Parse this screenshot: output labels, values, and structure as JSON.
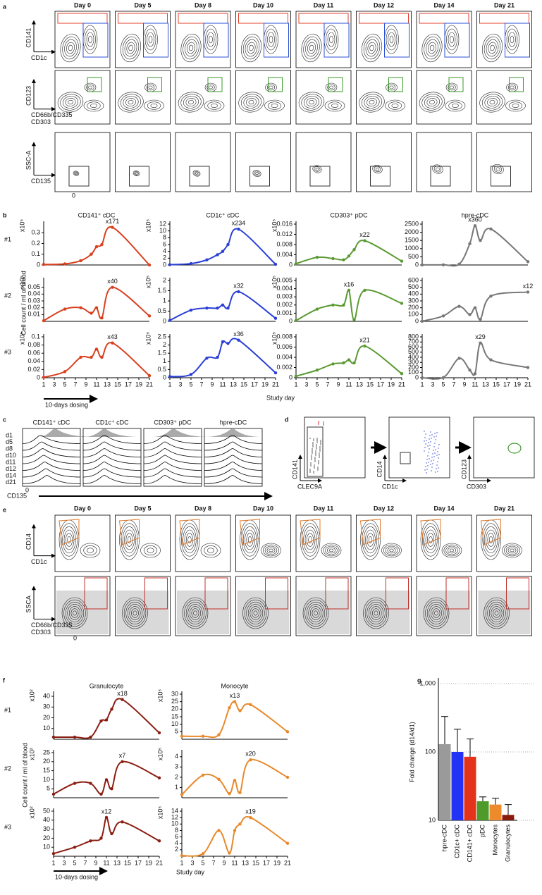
{
  "panel_labels": [
    "a",
    "b",
    "c",
    "d",
    "e",
    "f",
    "g"
  ],
  "panel_a": {
    "days": [
      "Day 0",
      "Day 5",
      "Day 8",
      "Day 10",
      "Day 11",
      "Day 12",
      "Day 14",
      "Day 21"
    ],
    "rows": [
      {
        "y_label": "CD141",
        "x_label": "CD1c"
      },
      {
        "y_label": "CD123",
        "x_label": "CD66b/CD335",
        "x_label_2": "CD303"
      },
      {
        "y_label": "SSC-A",
        "x_label": "CD135"
      }
    ],
    "zero": "0"
  },
  "panel_b": {
    "columns": [
      "CD141⁺ cDC",
      "CD1c⁺ cDC",
      "CD303⁺ pDC",
      "hpre-cDC"
    ],
    "rows": [
      "#1",
      "#2",
      "#3"
    ],
    "y_label": "Cell count / ml of blood",
    "x_label": "Study day",
    "dosing": "10-days dosing"
  },
  "panel_c": {
    "columns": [
      "CD141⁺ cDC",
      "CD1c⁺ cDC",
      "CD303⁺ pDC",
      "hpre-cDC"
    ],
    "days": [
      "d1",
      "d5",
      "d8",
      "d10",
      "d11",
      "d12",
      "d14",
      "d21"
    ],
    "x_label": "CD135",
    "zero": "0"
  },
  "panel_d": {
    "plots": [
      {
        "y_label": "CD141",
        "x_label": "CLEC9A"
      },
      {
        "y_label": "CD14",
        "x_label": "CD1c"
      },
      {
        "y_label": "CD123",
        "x_label": "CD303"
      }
    ]
  },
  "panel_e": {
    "days": [
      "Day 0",
      "Day 5",
      "Day 8",
      "Day 10",
      "Day 11",
      "Day 12",
      "Day 14",
      "Day 21"
    ],
    "rows": [
      {
        "y_label": "CD14",
        "x_label": "CD1c"
      },
      {
        "y_label": "SSCA",
        "x_label": "CD66b/CD335",
        "x_label_2": "CD303"
      }
    ],
    "zero": "0"
  },
  "panel_f": {
    "columns": [
      "Granulocyte",
      "Monocyte"
    ],
    "rows": [
      "#1",
      "#2",
      "#3"
    ],
    "y_label": "Cell count / ml of blood",
    "x_label": "Study day",
    "dosing": "10-days dosing"
  },
  "chart_data": [
    {
      "type": "line",
      "x": [
        1,
        5,
        8,
        10,
        11,
        12,
        14,
        21
      ],
      "values": [
        0.005,
        0.01,
        0.04,
        0.1,
        0.17,
        0.19,
        0.35,
        0
      ],
      "color": "#d9401f",
      "xlim": [
        1,
        21
      ],
      "ylim": [
        0,
        0.38
      ],
      "yticks": [
        0,
        0.1,
        0.2,
        0.3
      ],
      "unit_label": "x10⁵",
      "annotation": "x171"
    },
    {
      "type": "line",
      "x": [
        1,
        5,
        8,
        10,
        11,
        12,
        14,
        21
      ],
      "values": [
        0.1,
        0.4,
        1.5,
        3,
        4,
        6,
        10.5,
        0.2
      ],
      "color": "#2a3fd6",
      "xlim": [
        1,
        21
      ],
      "ylim": [
        0,
        12
      ],
      "yticks": [
        0,
        2,
        4,
        6,
        8,
        10,
        12
      ],
      "unit_label": "x10⁵",
      "annotation": "x234"
    },
    {
      "type": "line",
      "x": [
        1,
        5,
        8,
        10,
        11,
        12,
        14,
        21
      ],
      "values": [
        0.0005,
        0.003,
        0.0025,
        0.002,
        0.0035,
        0.006,
        0.0095,
        0.0015
      ],
      "color": "#5a9a32",
      "xlim": [
        1,
        21
      ],
      "ylim": [
        0,
        0.016
      ],
      "yticks": [
        0,
        0.004,
        0.008,
        0.012,
        0.016
      ],
      "unit_label": "x10⁵",
      "annotation": "x22"
    },
    {
      "type": "line",
      "x": [
        1,
        5,
        8,
        10,
        11,
        12,
        14,
        21
      ],
      "values": [
        5,
        10,
        50,
        1300,
        2400,
        1500,
        2200,
        200
      ],
      "color": "#777777",
      "xlim": [
        1,
        21
      ],
      "ylim": [
        0,
        2500
      ],
      "yticks": [
        0,
        500,
        1000,
        1500,
        2000,
        2500
      ],
      "annotation": "x360"
    },
    {
      "type": "line",
      "x": [
        1,
        5,
        8,
        10,
        11,
        12,
        14,
        21
      ],
      "values": [
        0.001,
        0.018,
        0.02,
        0.012,
        0.02,
        0.005,
        0.05,
        0.008
      ],
      "color": "#d9401f",
      "xlim": [
        1,
        21
      ],
      "ylim": [
        0,
        0.06
      ],
      "yticks": [
        0.01,
        0.02,
        0.03,
        0.04,
        0.05
      ],
      "unit_label": "x10⁵",
      "annotation": "x40"
    },
    {
      "type": "line",
      "x": [
        1,
        5,
        8,
        10,
        11,
        12,
        14,
        21
      ],
      "values": [
        0.05,
        0.55,
        0.65,
        0.65,
        0.8,
        0.65,
        1.45,
        0.15
      ],
      "color": "#2a3fd6",
      "xlim": [
        1,
        21
      ],
      "ylim": [
        0,
        2
      ],
      "yticks": [
        0,
        0.5,
        1,
        1.5,
        2
      ],
      "unit_label": "x10⁵",
      "annotation": "x32"
    },
    {
      "type": "line",
      "x": [
        1,
        5,
        8,
        10,
        11,
        12,
        14,
        21
      ],
      "values": [
        0.0001,
        0.0015,
        0.002,
        0.002,
        0.0038,
        0.0002,
        0.0038,
        0.0022
      ],
      "color": "#5a9a32",
      "xlim": [
        1,
        21
      ],
      "ylim": [
        0,
        0.005
      ],
      "yticks": [
        0,
        0.001,
        0.002,
        0.003,
        0.004,
        0.005
      ],
      "unit_label": "x10⁵",
      "annotation": "x16"
    },
    {
      "type": "line",
      "x": [
        1,
        5,
        8,
        10,
        11,
        12,
        14,
        21
      ],
      "values": [
        2,
        80,
        220,
        100,
        200,
        30,
        370,
        430
      ],
      "color": "#777777",
      "xlim": [
        1,
        21
      ],
      "ylim": [
        0,
        600
      ],
      "yticks": [
        0,
        100,
        200,
        300,
        400,
        500,
        600
      ],
      "annotation": "x12"
    },
    {
      "type": "line",
      "x": [
        1,
        5,
        8,
        10,
        11,
        12,
        14,
        21
      ],
      "values": [
        0.001,
        0.015,
        0.05,
        0.05,
        0.07,
        0.05,
        0.085,
        0.005
      ],
      "color": "#d9401f",
      "xlim": [
        1,
        21
      ],
      "ylim": [
        0,
        0.1
      ],
      "yticks": [
        0,
        0.02,
        0.04,
        0.06,
        0.08,
        0.1
      ],
      "xticks": [
        1,
        3,
        5,
        7,
        9,
        11,
        13,
        15,
        17,
        19,
        21
      ],
      "unit_label": "x10⁵",
      "annotation": "x43"
    },
    {
      "type": "line",
      "x": [
        1,
        5,
        8,
        10,
        11,
        12,
        14,
        21
      ],
      "values": [
        0.07,
        0.2,
        1.2,
        1.25,
        2.2,
        2.1,
        2.3,
        0.3
      ],
      "color": "#2a3fd6",
      "xlim": [
        1,
        21
      ],
      "ylim": [
        0,
        2.5
      ],
      "yticks": [
        0,
        0.5,
        1,
        1.5,
        2,
        2.5
      ],
      "xticks": [
        1,
        3,
        5,
        7,
        9,
        11,
        13,
        15,
        17,
        19,
        21
      ],
      "unit_label": "x10⁵",
      "annotation": "x36"
    },
    {
      "type": "line",
      "x": [
        1,
        5,
        8,
        10,
        11,
        12,
        14,
        21
      ],
      "values": [
        0.0003,
        0.0015,
        0.0027,
        0.0029,
        0.0035,
        0.0029,
        0.0062,
        0.0008
      ],
      "color": "#5a9a32",
      "xlim": [
        1,
        21
      ],
      "ylim": [
        0,
        0.008
      ],
      "yticks": [
        0,
        0.002,
        0.004,
        0.006,
        0.008
      ],
      "xticks": [
        1,
        3,
        5,
        7,
        9,
        11,
        13,
        15,
        17,
        19,
        21
      ],
      "unit_label": "x10⁵",
      "annotation": "x21"
    },
    {
      "type": "line",
      "x": [
        1,
        5,
        8,
        10,
        11,
        12,
        14,
        21
      ],
      "values": [
        0,
        5,
        380,
        150,
        80,
        680,
        350,
        200
      ],
      "color": "#777777",
      "xlim": [
        1,
        21
      ],
      "ylim": [
        0,
        800
      ],
      "yticks": [
        0,
        100,
        200,
        300,
        400,
        500,
        600,
        700,
        800
      ],
      "xticks": [
        1,
        3,
        5,
        7,
        9,
        11,
        13,
        15,
        17,
        19,
        21
      ],
      "annotation": "x29"
    },
    {
      "type": "line",
      "x": [
        1,
        5,
        8,
        10,
        11,
        12,
        14,
        21
      ],
      "values": [
        2,
        2,
        2,
        17,
        18,
        28,
        37,
        6
      ],
      "color": "#8b1e12",
      "xlim": [
        1,
        21
      ],
      "ylim": [
        0,
        42
      ],
      "yticks": [
        10,
        20,
        30,
        40
      ],
      "unit_label": "x10²",
      "annotation": "x18"
    },
    {
      "type": "line",
      "x": [
        1,
        5,
        8,
        10,
        11,
        12,
        14,
        21
      ],
      "values": [
        2,
        2,
        3,
        21,
        25,
        19,
        23,
        5
      ],
      "color": "#e8892b",
      "xlim": [
        1,
        21
      ],
      "ylim": [
        0,
        30
      ],
      "yticks": [
        5,
        10,
        15,
        20,
        25,
        30
      ],
      "unit_label": "x10⁵",
      "annotation": "x13"
    },
    {
      "type": "line",
      "x": [
        1,
        5,
        8,
        10,
        11,
        12,
        14,
        21
      ],
      "values": [
        2,
        8,
        8,
        2,
        10,
        5,
        20,
        11
      ],
      "color": "#8b1e12",
      "xlim": [
        1,
        21
      ],
      "ylim": [
        0,
        25
      ],
      "yticks": [
        5,
        10,
        15,
        20,
        25
      ],
      "unit_label": "x10²",
      "annotation": "x7"
    },
    {
      "type": "line",
      "x": [
        1,
        5,
        8,
        10,
        11,
        12,
        14,
        21
      ],
      "values": [
        0.3,
        2.2,
        1.8,
        0.4,
        1.7,
        0.5,
        3.7,
        2
      ],
      "color": "#e8892b",
      "xlim": [
        1,
        21
      ],
      "ylim": [
        0,
        4.4
      ],
      "yticks": [
        1,
        2,
        3,
        4
      ],
      "unit_label": "x10⁵",
      "annotation": "x20"
    },
    {
      "type": "line",
      "x": [
        1,
        5,
        8,
        10,
        11,
        12,
        14,
        21
      ],
      "values": [
        3,
        10,
        17,
        20,
        43,
        25,
        38,
        17
      ],
      "color": "#8b1e12",
      "xlim": [
        1,
        21
      ],
      "ylim": [
        0,
        50
      ],
      "yticks": [
        10,
        20,
        30,
        40,
        50
      ],
      "xticks": [
        1,
        3,
        5,
        7,
        9,
        11,
        13,
        15,
        17,
        19,
        21
      ],
      "unit_label": "x10²",
      "annotation": "x12"
    },
    {
      "type": "line",
      "x": [
        1,
        5,
        8,
        10,
        11,
        12,
        14,
        21
      ],
      "values": [
        0.2,
        0.8,
        8,
        1,
        8,
        10,
        12,
        4
      ],
      "color": "#e8892b",
      "xlim": [
        1,
        21
      ],
      "ylim": [
        0,
        14
      ],
      "yticks": [
        2,
        4,
        6,
        8,
        10,
        12,
        14
      ],
      "xticks": [
        1,
        3,
        5,
        7,
        9,
        11,
        13,
        15,
        17,
        19,
        21
      ],
      "unit_label": "x10⁵",
      "annotation": "x19"
    },
    {
      "type": "bar",
      "y_label": "Fold change (d14/d1)",
      "log_scale": true,
      "grid": true,
      "categories": [
        "hpre-cDC",
        "CD1c+ cDC",
        "CD141+ cDC",
        "pDC",
        "Monocytes",
        "Granulocytes"
      ],
      "values": [
        130,
        100,
        85,
        19,
        17,
        12
      ],
      "errors": [
        200,
        115,
        70,
        3,
        4,
        5
      ],
      "colors": [
        "#9a9a9a",
        "#2233f5",
        "#e5321a",
        "#4e9a2a",
        "#ec8a2c",
        "#8b1a0e"
      ],
      "ylim": [
        10,
        1000
      ],
      "yticks": [
        10,
        100,
        {
          "value": 1000,
          "label": "1,000"
        }
      ]
    }
  ]
}
